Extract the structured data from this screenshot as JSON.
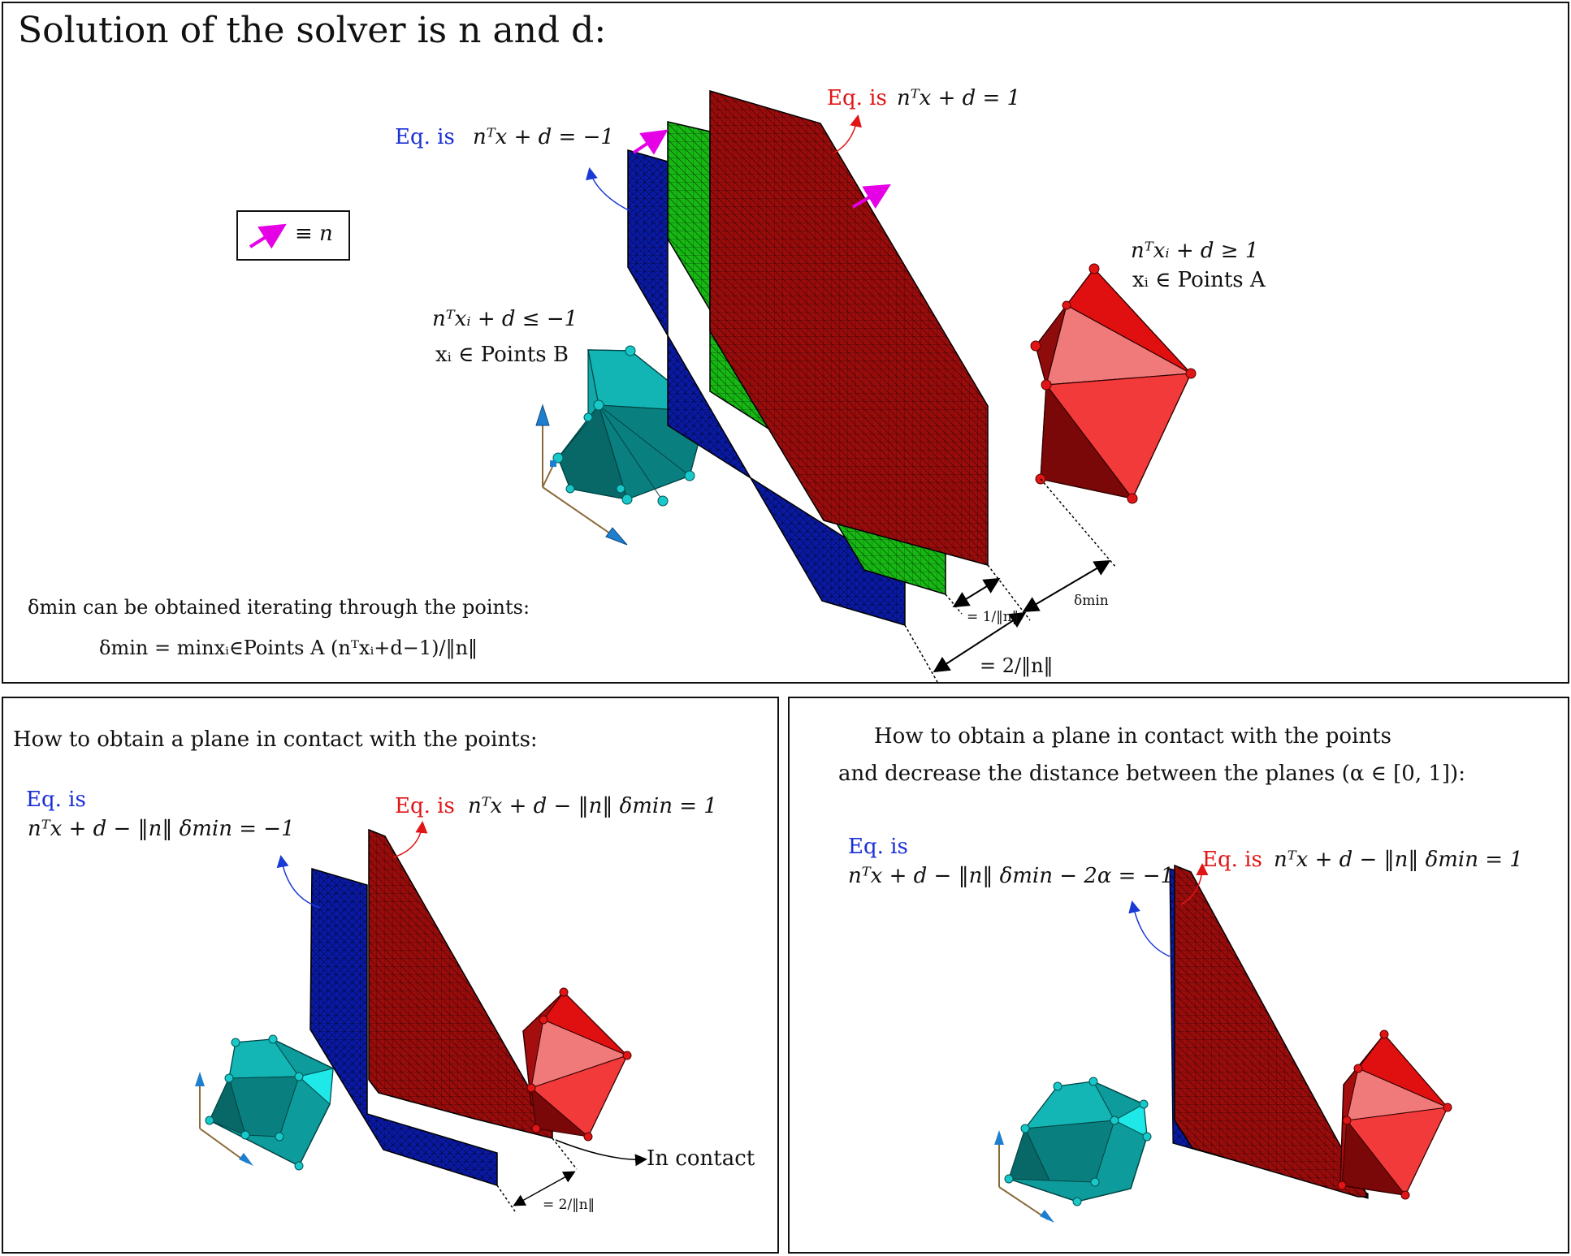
{
  "colors": {
    "blue_plane": "#0a1aa8",
    "green_plane": "#17b814",
    "red_plane": "#9a0c0c",
    "arrow_magenta": "#e600e6",
    "label_blue": "#1a2fd6",
    "label_red": "#e01616",
    "poly_cyan": "#0fa3a3",
    "poly_red": "#e61a1a"
  },
  "top": {
    "title": "Solution of the solver is n and d:",
    "legend_text": "≡ n",
    "blue_eq_prefix": "Eq. is",
    "blue_eq": "nᵀx + d = −1",
    "red_eq_prefix": "Eq. is",
    "red_eq": "nᵀx + d = 1",
    "points_b_ineq": "nᵀxᵢ + d ≤ −1",
    "points_b_member": "xᵢ ∈ Points B",
    "points_a_ineq": "nᵀxᵢ + d ≥ 1",
    "points_a_member": "xᵢ ∈ Points A",
    "delta_text": "δmin can be obtained iterating through the points:",
    "delta_formula": "δmin = minxᵢ∈Points A (nᵀxᵢ+d−1)/‖n‖",
    "dim_half": "= 1/‖n‖",
    "dim_full": "= 2/‖n‖",
    "dim_delta": "δmin"
  },
  "bottom_left": {
    "heading": "How to obtain a plane in contact with the points:",
    "blue_eq_prefix": "Eq. is",
    "blue_eq": "nᵀx + d − ‖n‖ δmin = −1",
    "red_eq_prefix": "Eq. is",
    "red_eq": "nᵀx + d − ‖n‖ δmin = 1",
    "contact_label": "In contact",
    "dim_full": "= 2/‖n‖"
  },
  "bottom_right": {
    "heading_line1": "How to obtain a plane in contact with the points",
    "heading_line2": "and decrease the distance between the planes (α ∈ [0, 1]):",
    "blue_eq_prefix": "Eq. is",
    "blue_eq": "nᵀx + d − ‖n‖ δmin − 2α = −1",
    "red_eq_prefix": "Eq. is",
    "red_eq": "nᵀx + d − ‖n‖ δmin = 1"
  }
}
